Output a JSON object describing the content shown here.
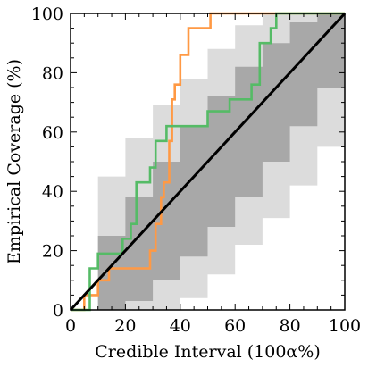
{
  "chart_data": {
    "type": "line",
    "xlabel": "Credible Interval (100α%)",
    "ylabel": "Empirical Coverage (%)",
    "xlim": [
      0,
      100
    ],
    "ylim": [
      0,
      100
    ],
    "xticks": [
      0,
      20,
      40,
      60,
      80,
      100
    ],
    "yticks": [
      0,
      20,
      40,
      60,
      80,
      100
    ],
    "grid": false,
    "legend": "none",
    "bands": [
      {
        "level": "outer",
        "color": "#dcdcdc",
        "x": [
          0,
          10,
          20,
          30,
          40,
          50,
          60,
          70,
          80,
          90,
          100
        ],
        "lower": [
          0,
          0,
          0,
          0,
          4,
          12,
          22,
          31,
          42,
          55,
          100
        ],
        "upper": [
          0,
          45,
          58,
          69,
          78,
          88,
          96,
          100,
          100,
          100,
          100
        ]
      },
      {
        "level": "inner",
        "color": "#a8a8a8",
        "x": [
          0,
          10,
          20,
          30,
          40,
          50,
          60,
          70,
          80,
          90,
          100
        ],
        "lower": [
          0,
          0,
          3,
          10,
          18,
          28,
          38,
          50,
          62,
          75,
          100
        ],
        "upper": [
          0,
          25,
          38,
          50,
          62,
          72,
          82,
          90,
          97,
          100,
          100
        ]
      }
    ],
    "series": [
      {
        "color": "#ff9944",
        "step": true,
        "x": [
          0,
          5,
          5,
          10,
          10,
          14,
          14,
          19,
          19,
          29,
          29,
          31,
          31,
          33,
          33,
          34,
          34,
          36,
          36,
          37,
          37,
          38,
          38,
          40,
          40,
          43,
          43,
          48,
          48,
          51,
          51,
          100
        ],
        "y": [
          0,
          0,
          5,
          5,
          10,
          10,
          14,
          14,
          14,
          14,
          20,
          20,
          29,
          29,
          38,
          38,
          43,
          43,
          57,
          57,
          71,
          71,
          76,
          76,
          86,
          86,
          95,
          95,
          95,
          95,
          100,
          100
        ]
      },
      {
        "color": "#55bb66",
        "step": true,
        "x": [
          0,
          7,
          7,
          10,
          10,
          14,
          14,
          19,
          19,
          22,
          22,
          24,
          24,
          29,
          29,
          31,
          31,
          35,
          35,
          38,
          38,
          48,
          48,
          50,
          50,
          58,
          58,
          59,
          59,
          66,
          66,
          69,
          69,
          73,
          73,
          75,
          75,
          100
        ],
        "y": [
          0,
          0,
          14,
          14,
          19,
          19,
          19,
          19,
          24,
          24,
          29,
          29,
          43,
          43,
          48,
          48,
          57,
          57,
          62,
          62,
          62,
          62,
          62,
          62,
          67,
          67,
          71,
          71,
          71,
          71,
          76,
          76,
          90,
          90,
          95,
          95,
          100,
          100
        ]
      },
      {
        "color": "#000000",
        "step": false,
        "x": [
          0,
          100
        ],
        "y": [
          0,
          100
        ]
      }
    ]
  }
}
